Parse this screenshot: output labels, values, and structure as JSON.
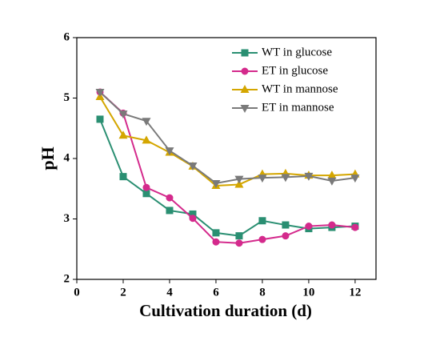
{
  "chart_data": {
    "type": "line",
    "x_label": "Cultivation duration (d)",
    "y_label": "pH",
    "x": [
      1,
      2,
      3,
      4,
      5,
      6,
      7,
      8,
      9,
      10,
      11,
      12
    ],
    "series": [
      {
        "name": "WT in glucose",
        "color": "#2a8f72",
        "marker": "square",
        "values": [
          4.65,
          3.7,
          3.42,
          3.14,
          3.08,
          2.77,
          2.72,
          2.97,
          2.9,
          2.84,
          2.86,
          2.88
        ]
      },
      {
        "name": "ET in glucose",
        "color": "#d42a8c",
        "marker": "circle",
        "values": [
          5.1,
          4.75,
          3.52,
          3.35,
          3.01,
          2.62,
          2.6,
          2.66,
          2.72,
          2.88,
          2.9,
          2.86
        ]
      },
      {
        "name": "WT in mannose",
        "color": "#d4a600",
        "marker": "triangle-up",
        "values": [
          5.02,
          4.38,
          4.3,
          4.1,
          3.87,
          3.55,
          3.57,
          3.74,
          3.75,
          3.72,
          3.72,
          3.74
        ]
      },
      {
        "name": "ET in mannose",
        "color": "#7a7a7a",
        "marker": "triangle-down",
        "values": [
          5.1,
          4.74,
          4.62,
          4.13,
          3.88,
          3.59,
          3.66,
          3.68,
          3.69,
          3.71,
          3.63,
          3.68
        ]
      }
    ],
    "xlim": [
      0,
      12.9
    ],
    "xticks": [
      0,
      2,
      4,
      6,
      8,
      10,
      12
    ],
    "ylim": [
      2,
      6
    ],
    "yticks": [
      2,
      3,
      4,
      5,
      6
    ]
  }
}
